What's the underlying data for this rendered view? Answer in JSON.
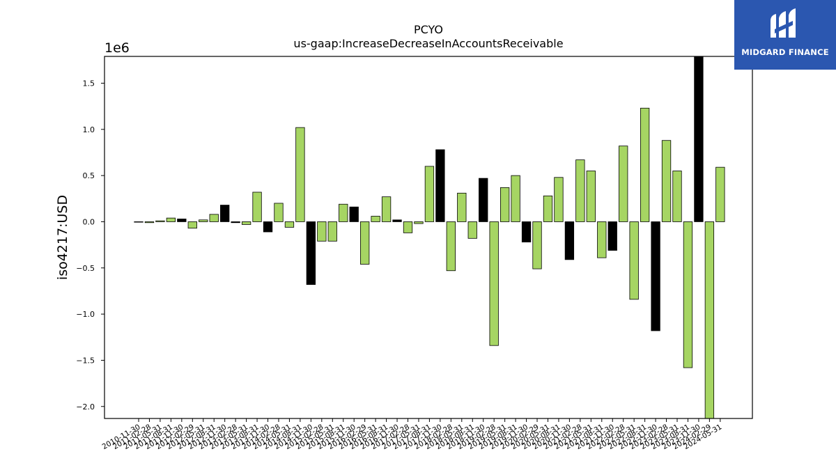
{
  "logo": {
    "text": "MIDGARD FINANCE",
    "color": "#2b57b0"
  },
  "colors": {
    "positive": "#a6d563",
    "negative": "#000000",
    "edge": "#000000"
  },
  "chart_data": {
    "type": "bar",
    "title": "PCYO",
    "subtitle": "us-gaap:IncreaseDecreaseInAccountsReceivable",
    "xlabel": "",
    "ylabel": "iso4217:USD",
    "y_offset_label": "1e6",
    "ylim": [
      -2.13,
      1.79
    ],
    "yticks": [
      -2.0,
      -1.5,
      -1.0,
      -0.5,
      0.0,
      0.5,
      1.0,
      1.5
    ],
    "ytick_labels": [
      "−2.0",
      "−1.5",
      "−1.0",
      "−0.5",
      "0.0",
      "0.5",
      "1.0",
      "1.5"
    ],
    "grid": false,
    "categories": [
      "2010-11-30",
      "2011-02-28",
      "2011-05-31",
      "2011-08-31",
      "2011-11-30",
      "2012-02-29",
      "2012-05-31",
      "2012-08-31",
      "2012-11-30",
      "2013-02-28",
      "2013-05-31",
      "2013-08-31",
      "2013-11-30",
      "2014-02-28",
      "2014-05-31",
      "2014-08-31",
      "2014-11-30",
      "2015-02-28",
      "2015-05-31",
      "2015-08-31",
      "2015-11-30",
      "2016-02-29",
      "2016-05-31",
      "2016-08-31",
      "2016-11-30",
      "2017-02-28",
      "2017-05-31",
      "2017-08-31",
      "2017-11-30",
      "2018-02-28",
      "2018-05-31",
      "2018-08-31",
      "2018-11-30",
      "2019-02-28",
      "2019-05-31",
      "2019-08-31",
      "2019-11-30",
      "2020-02-29",
      "2020-05-31",
      "2020-08-31",
      "2020-11-30",
      "2021-02-28",
      "2021-05-31",
      "2021-08-31",
      "2021-11-30",
      "2022-02-28",
      "2022-05-31",
      "2022-08-31",
      "2022-11-30",
      "2023-02-28",
      "2023-05-31",
      "2023-08-31",
      "2023-11-30",
      "2024-02-29",
      "2024-05-31"
    ],
    "values": [
      -0.005,
      -0.01,
      0.01,
      0.04,
      0.03,
      -0.07,
      0.02,
      0.08,
      0.18,
      -0.01,
      -0.03,
      0.32,
      -0.11,
      0.2,
      -0.06,
      1.02,
      -0.68,
      -0.21,
      -0.21,
      0.19,
      0.16,
      -0.46,
      0.06,
      0.27,
      0.02,
      -0.12,
      -0.02,
      0.6,
      0.78,
      -0.53,
      0.31,
      -0.18,
      0.47,
      -1.34,
      0.37,
      0.5,
      -0.22,
      -0.51,
      0.28,
      0.48,
      -0.41,
      0.67,
      0.55,
      -0.39,
      -0.31,
      0.82,
      -0.84,
      1.23,
      -1.18,
      0.88,
      0.55,
      -1.58,
      1.79,
      -2.13,
      0.59
    ],
    "bar_colors": [
      "positive",
      "positive",
      "positive",
      "positive",
      "negative",
      "positive",
      "positive",
      "positive",
      "negative",
      "negative",
      "positive",
      "positive",
      "negative",
      "positive",
      "positive",
      "positive",
      "negative",
      "positive",
      "positive",
      "positive",
      "negative",
      "positive",
      "positive",
      "positive",
      "negative",
      "positive",
      "positive",
      "positive",
      "negative",
      "positive",
      "positive",
      "positive",
      "negative",
      "positive",
      "positive",
      "positive",
      "negative",
      "positive",
      "positive",
      "positive",
      "negative",
      "positive",
      "positive",
      "positive",
      "negative",
      "positive",
      "positive",
      "positive",
      "negative",
      "positive",
      "positive",
      "positive",
      "negative",
      "positive",
      "positive"
    ]
  }
}
